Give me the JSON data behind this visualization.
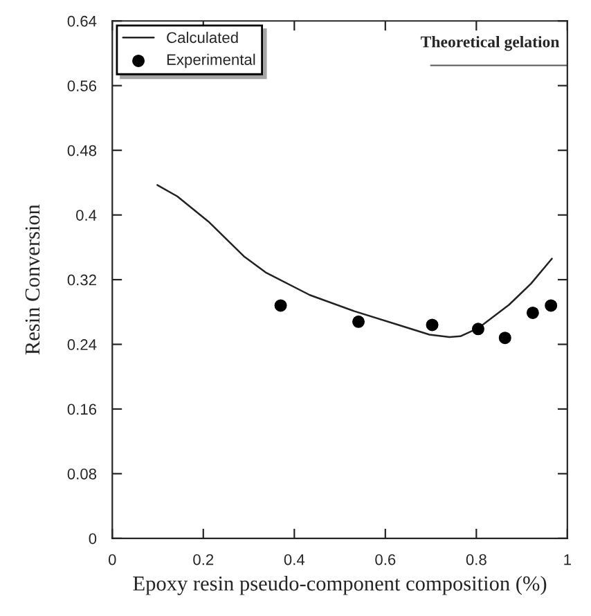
{
  "chart_data": {
    "type": "line",
    "xlabel": "Epoxy resin pseudo-component composition (%)",
    "ylabel": "Resin Conversion",
    "xlim": [
      0,
      1
    ],
    "xticks": [
      0,
      0.2,
      0.4,
      0.6,
      0.8,
      1
    ],
    "ylim": [
      0,
      0.64
    ],
    "yticks": [
      0,
      0.08,
      0.16,
      0.24,
      0.32,
      0.4,
      0.48,
      0.56,
      0.64
    ],
    "grid": false,
    "legend": "top left",
    "series": [
      {
        "name": "Calculated",
        "color": "#222222",
        "marker": "none",
        "line_style": "solid",
        "x": [
          0.099,
          0.143,
          0.211,
          0.289,
          0.337,
          0.434,
          0.532,
          0.629,
          0.697,
          0.741,
          0.765,
          0.804,
          0.872,
          0.92,
          0.966
        ],
        "values": [
          0.437,
          0.423,
          0.392,
          0.349,
          0.329,
          0.301,
          0.281,
          0.264,
          0.252,
          0.249,
          0.25,
          0.26,
          0.289,
          0.315,
          0.346
        ]
      },
      {
        "name": "Experimental",
        "type": "scatter",
        "color": "#000000",
        "marker": "circle",
        "x": [
          0.37,
          0.541,
          0.703,
          0.804,
          0.863,
          0.924,
          0.964
        ],
        "values": [
          0.288,
          0.268,
          0.264,
          0.259,
          0.248,
          0.279,
          0.288
        ]
      }
    ],
    "ref_lines": [
      {
        "axis": "y",
        "value": 0.585,
        "label": "Theoretical gelation",
        "color": "#555555",
        "line_style": "solid"
      }
    ]
  }
}
